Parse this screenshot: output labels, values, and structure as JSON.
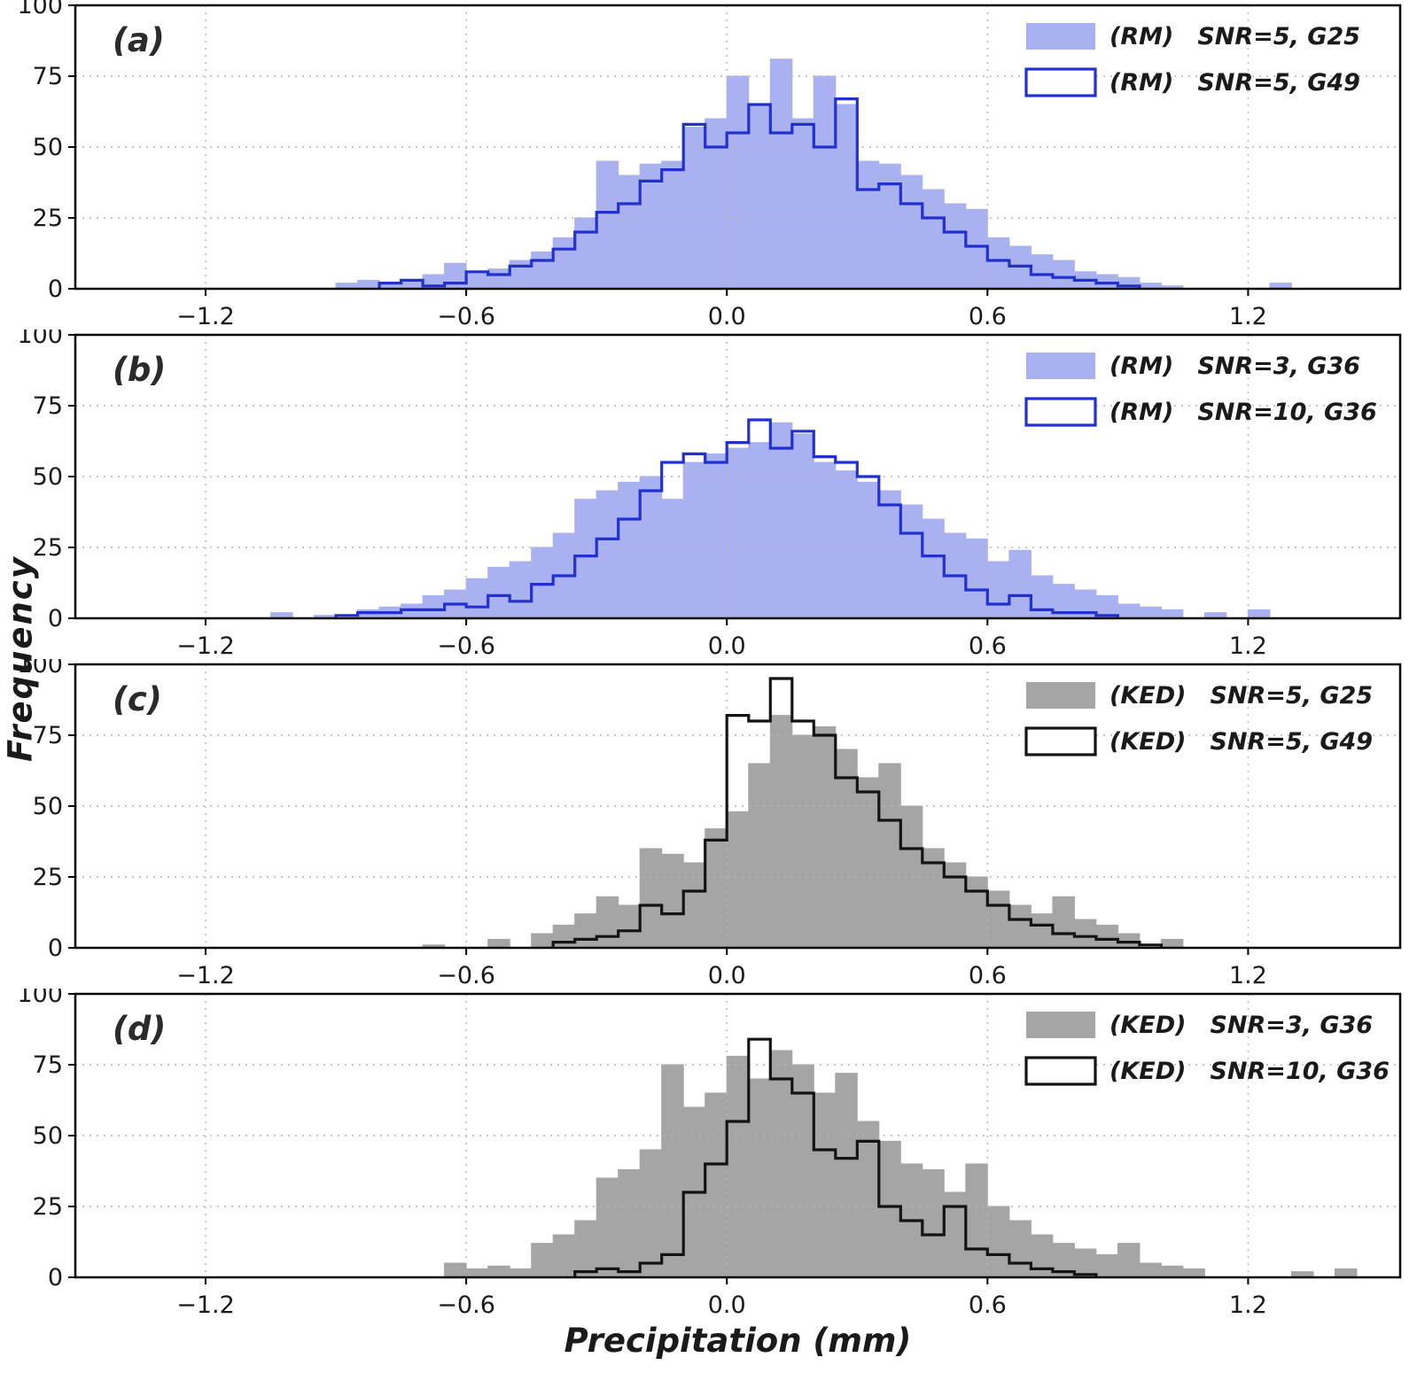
{
  "figure": {
    "xlabel": "Precipitation (mm)",
    "ylabel": "Frequency",
    "x_tick_values": [
      -1.2,
      -0.6,
      0.0,
      0.6,
      1.2
    ],
    "x_tick_labels": [
      "−1.2",
      "−0.6",
      "0.0",
      "0.6",
      "1.2"
    ],
    "y_tick_values": [
      0,
      25,
      50,
      75,
      100
    ],
    "y_tick_labels": [
      "0",
      "25",
      "50",
      "75",
      "100"
    ],
    "grid_color": "#b8b8b8",
    "frame_color": "#000000"
  },
  "chart_data": [
    {
      "type": "bar",
      "panel": "(a)",
      "xlim": [
        -1.5,
        1.55
      ],
      "ylim": [
        0,
        100
      ],
      "bin_width": 0.05,
      "grid": true,
      "legend_position": "top-right",
      "series": [
        {
          "name": "(RM)  SNR=5, G25",
          "style": "filled",
          "color": "#a9b1f1",
          "start": -0.9,
          "values": [
            2,
            3,
            2,
            3,
            5,
            9,
            6,
            7,
            10,
            13,
            18,
            25,
            45,
            40,
            44,
            45,
            57,
            60,
            75,
            65,
            81,
            60,
            75,
            65,
            45,
            44,
            40,
            35,
            30,
            28,
            18,
            15,
            12,
            10,
            6,
            5,
            4,
            2,
            1,
            0,
            0,
            0,
            0,
            2
          ]
        },
        {
          "name": "(RM)  SNR=5, G49",
          "style": "step",
          "color": "#2130cf",
          "start": -0.8,
          "values": [
            2,
            3,
            1,
            2,
            6,
            5,
            8,
            10,
            14,
            20,
            27,
            30,
            38,
            42,
            58,
            50,
            55,
            65,
            55,
            58,
            50,
            67,
            35,
            37,
            30,
            25,
            20,
            15,
            10,
            8,
            5,
            4,
            3,
            2,
            1
          ]
        }
      ]
    },
    {
      "type": "bar",
      "panel": "(b)",
      "xlim": [
        -1.5,
        1.55
      ],
      "ylim": [
        0,
        100
      ],
      "bin_width": 0.05,
      "grid": true,
      "legend_position": "top-right",
      "series": [
        {
          "name": "(RM)  SNR=3, G36",
          "style": "filled",
          "color": "#a9b1f1",
          "start": -1.05,
          "values": [
            2,
            0,
            1,
            0,
            3,
            4,
            5,
            8,
            10,
            14,
            18,
            20,
            25,
            30,
            42,
            45,
            48,
            50,
            42,
            55,
            58,
            60,
            62,
            69,
            65,
            55,
            52,
            48,
            45,
            40,
            35,
            30,
            28,
            20,
            24,
            15,
            12,
            10,
            8,
            5,
            4,
            3,
            0,
            2,
            0,
            3
          ]
        },
        {
          "name": "(RM)  SNR=10, G36",
          "style": "step",
          "color": "#2130cf",
          "start": -0.9,
          "values": [
            1,
            2,
            2,
            3,
            3,
            5,
            4,
            8,
            6,
            12,
            15,
            22,
            28,
            35,
            45,
            55,
            58,
            55,
            62,
            70,
            60,
            66,
            57,
            55,
            50,
            40,
            30,
            22,
            15,
            10,
            5,
            8,
            3,
            2,
            2,
            1
          ]
        }
      ]
    },
    {
      "type": "bar",
      "panel": "(c)",
      "xlim": [
        -1.5,
        1.55
      ],
      "ylim": [
        0,
        100
      ],
      "bin_width": 0.05,
      "grid": true,
      "legend_position": "top-right",
      "series": [
        {
          "name": "(KED)  SNR=5, G25",
          "style": "filled",
          "color": "#a5a5a5",
          "start": -0.7,
          "values": [
            1,
            0,
            0,
            3,
            0,
            5,
            8,
            12,
            18,
            15,
            35,
            33,
            30,
            42,
            48,
            65,
            82,
            75,
            78,
            70,
            60,
            65,
            50,
            35,
            30,
            25,
            20,
            15,
            12,
            18,
            10,
            8,
            5,
            0,
            3
          ]
        },
        {
          "name": "(KED)  SNR=5, G49",
          "style": "step",
          "color": "#141414",
          "start": -0.4,
          "values": [
            2,
            3,
            4,
            6,
            15,
            12,
            20,
            38,
            82,
            80,
            95,
            80,
            75,
            60,
            55,
            45,
            35,
            30,
            25,
            20,
            15,
            10,
            8,
            5,
            4,
            3,
            2,
            1
          ]
        }
      ]
    },
    {
      "type": "bar",
      "panel": "(d)",
      "xlim": [
        -1.5,
        1.55
      ],
      "ylim": [
        0,
        100
      ],
      "bin_width": 0.05,
      "grid": true,
      "legend_position": "top-right",
      "series": [
        {
          "name": "(KED)  SNR=3, G36",
          "style": "filled",
          "color": "#a5a5a5",
          "start": -0.65,
          "values": [
            5,
            3,
            4,
            3,
            12,
            15,
            20,
            35,
            38,
            45,
            75,
            60,
            65,
            78,
            70,
            80,
            75,
            65,
            72,
            55,
            48,
            40,
            38,
            30,
            40,
            25,
            20,
            15,
            12,
            10,
            8,
            12,
            5,
            4,
            3,
            0,
            0,
            0,
            0,
            2,
            0,
            3
          ]
        },
        {
          "name": "(KED)  SNR=10, G36",
          "style": "step",
          "color": "#141414",
          "start": -0.35,
          "values": [
            2,
            3,
            2,
            5,
            8,
            30,
            40,
            55,
            84,
            70,
            65,
            45,
            42,
            48,
            25,
            20,
            15,
            25,
            10,
            8,
            5,
            3,
            2,
            1
          ]
        }
      ]
    }
  ]
}
